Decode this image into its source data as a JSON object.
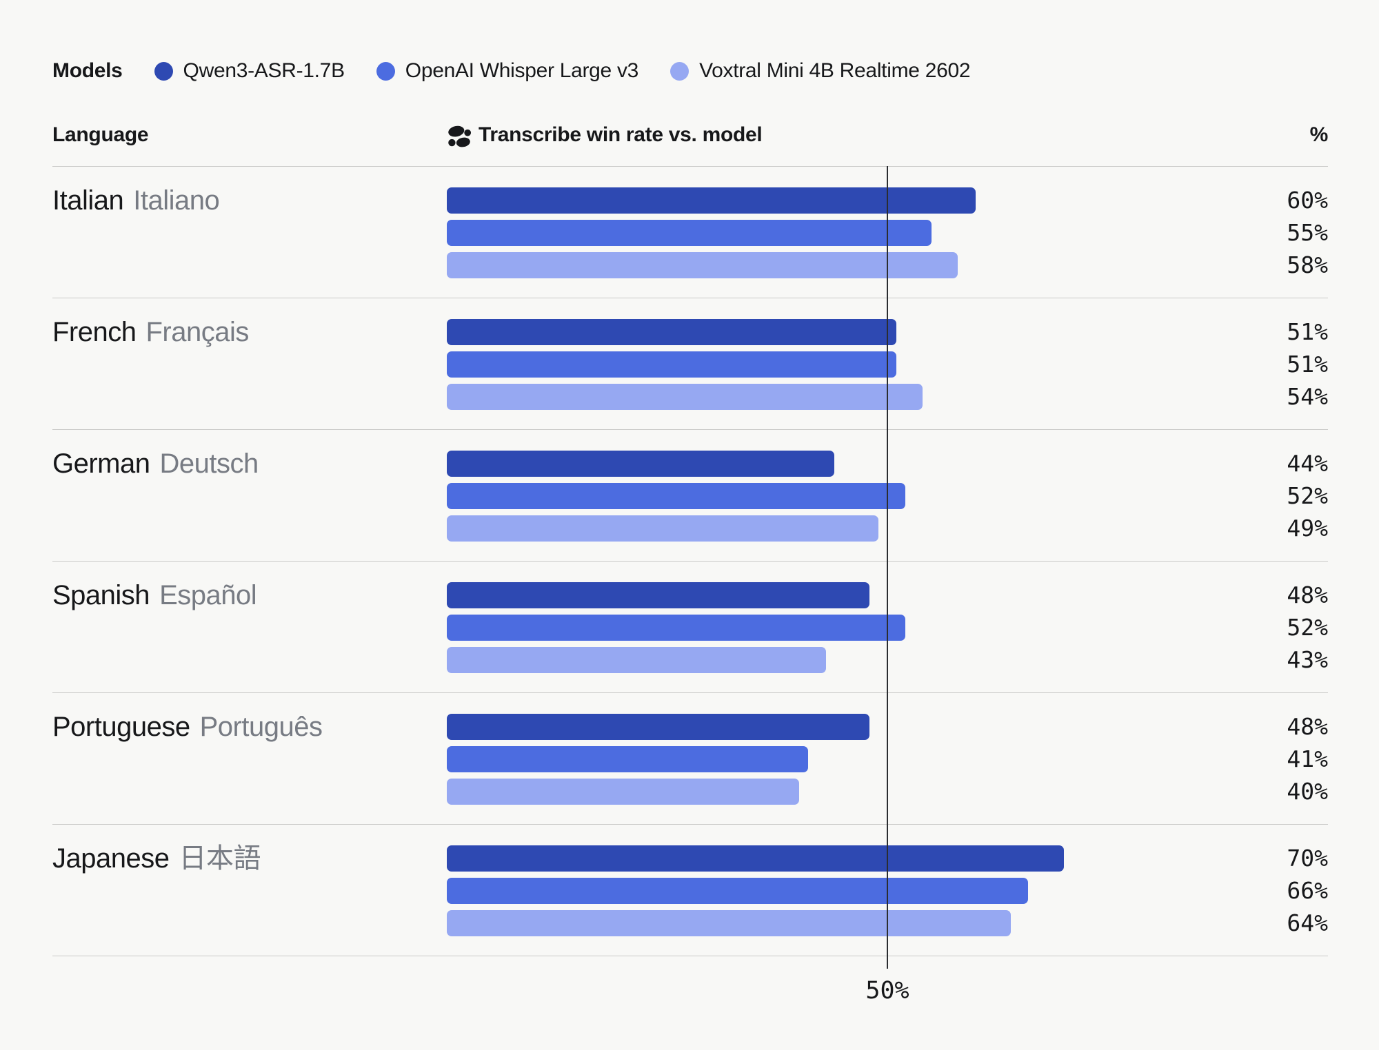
{
  "colors": {
    "background": "#F8F8F6",
    "text_primary": "#17181A",
    "text_secondary": "#777B83",
    "separator": "#C9C9C7",
    "reference_line": "#2B2D30",
    "series": [
      "#2E49B2",
      "#4C6CE0",
      "#96A8F2"
    ]
  },
  "legend": {
    "title": "Models",
    "items": [
      {
        "label": "Qwen3-ASR-1.7B",
        "color": "#2E49B2"
      },
      {
        "label": "OpenAI Whisper Large v3",
        "color": "#4C6CE0"
      },
      {
        "label": "Voxtral Mini 4B Realtime 2602",
        "color": "#96A8F2"
      }
    ]
  },
  "header": {
    "language": "Language",
    "metric": "Transcribe win rate vs. model",
    "percent": "%"
  },
  "chart_data": {
    "type": "bar",
    "orientation": "horizontal",
    "unit": "%",
    "xlim": [
      0,
      100
    ],
    "grid": false,
    "reference_line": {
      "value": 50,
      "label": "50%"
    },
    "series_names": [
      "Qwen3-ASR-1.7B",
      "OpenAI Whisper Large v3",
      "Voxtral Mini 4B Realtime 2602"
    ],
    "rows": [
      {
        "language": "Italian",
        "native": "Italiano",
        "values": [
          60,
          55,
          58
        ]
      },
      {
        "language": "French",
        "native": "Français",
        "values": [
          51,
          51,
          54
        ]
      },
      {
        "language": "German",
        "native": "Deutsch",
        "values": [
          44,
          52,
          49
        ]
      },
      {
        "language": "Spanish",
        "native": "Español",
        "values": [
          48,
          52,
          43
        ]
      },
      {
        "language": "Portuguese",
        "native": "Português",
        "values": [
          48,
          41,
          40
        ]
      },
      {
        "language": "Japanese",
        "native": "日本語",
        "values": [
          70,
          66,
          64
        ]
      }
    ]
  }
}
